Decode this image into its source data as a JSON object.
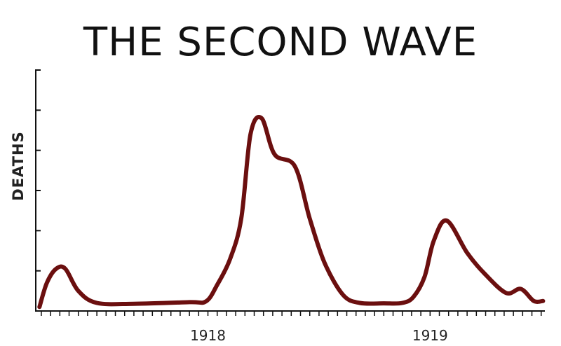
{
  "chart_data": {
    "type": "line",
    "title": "THE SECOND WAVE",
    "xlabel": "",
    "ylabel": "DEATHS",
    "x_tick_labels": [
      {
        "label": "1918",
        "x": 0
      },
      {
        "label": "1919",
        "x": 12
      }
    ],
    "xlim": [
      -9.3,
      18.2
    ],
    "ylim": [
      0,
      6
    ],
    "y_tick_count": 7,
    "x_minor_tick_step": 0.5,
    "grid": false,
    "line_color": "#6b0f0f",
    "series": [
      {
        "values": [
          {
            "x": -9.1,
            "y": 0.1
          },
          {
            "x": -8.7,
            "y": 0.7
          },
          {
            "x": -8.2,
            "y": 1.05
          },
          {
            "x": -7.7,
            "y": 1.05
          },
          {
            "x": -7.0,
            "y": 0.5
          },
          {
            "x": -6.0,
            "y": 0.2
          },
          {
            "x": -4.0,
            "y": 0.18
          },
          {
            "x": -1.0,
            "y": 0.22
          },
          {
            "x": -0.1,
            "y": 0.24
          },
          {
            "x": 0.5,
            "y": 0.65
          },
          {
            "x": 1.2,
            "y": 1.3
          },
          {
            "x": 1.8,
            "y": 2.3
          },
          {
            "x": 2.3,
            "y": 4.4
          },
          {
            "x": 2.9,
            "y": 4.8
          },
          {
            "x": 3.6,
            "y": 3.9
          },
          {
            "x": 4.7,
            "y": 3.6
          },
          {
            "x": 5.5,
            "y": 2.3
          },
          {
            "x": 6.3,
            "y": 1.2
          },
          {
            "x": 7.3,
            "y": 0.4
          },
          {
            "x": 8.2,
            "y": 0.2
          },
          {
            "x": 9.5,
            "y": 0.19
          },
          {
            "x": 10.5,
            "y": 0.2
          },
          {
            "x": 11.1,
            "y": 0.35
          },
          {
            "x": 11.7,
            "y": 0.85
          },
          {
            "x": 12.2,
            "y": 1.75
          },
          {
            "x": 12.9,
            "y": 2.25
          },
          {
            "x": 14.0,
            "y": 1.45
          },
          {
            "x": 14.9,
            "y": 0.95
          },
          {
            "x": 16.1,
            "y": 0.45
          },
          {
            "x": 16.9,
            "y": 0.55
          },
          {
            "x": 17.6,
            "y": 0.25
          },
          {
            "x": 18.1,
            "y": 0.25
          }
        ]
      }
    ]
  }
}
